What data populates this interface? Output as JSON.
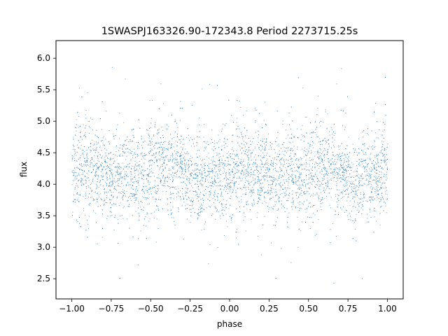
{
  "chart_data": {
    "type": "scatter",
    "title": "1SWASPJ163326.90-172343.8 Period 2273715.25s",
    "xlabel": "phase",
    "ylabel": "flux",
    "xlim": [
      -1.1,
      1.1
    ],
    "ylim": [
      2.18,
      6.28
    ],
    "x_ticks": [
      -1.0,
      -0.75,
      -0.5,
      -0.25,
      0.0,
      0.25,
      0.5,
      0.75,
      1.0
    ],
    "x_tick_labels": [
      "−1.00",
      "−0.75",
      "−0.50",
      "−0.25",
      "0.00",
      "0.25",
      "0.50",
      "0.75",
      "1.00"
    ],
    "y_ticks": [
      2.5,
      3.0,
      3.5,
      4.0,
      4.5,
      5.0,
      5.5,
      6.0
    ],
    "y_tick_labels": [
      "2.5",
      "3.0",
      "3.5",
      "4.0",
      "4.5",
      "5.0",
      "5.5",
      "6.0"
    ],
    "grid": false,
    "legend": "none",
    "point_color": "#1f77b4",
    "series": [
      {
        "x": [
          -1.0,
          -0.95,
          -0.9,
          -0.85,
          -0.8,
          -0.75,
          -0.7,
          -0.65,
          -0.6,
          -0.55,
          -0.5,
          -0.45,
          -0.4,
          -0.35,
          -0.3,
          -0.25,
          -0.2,
          -0.15,
          -0.1,
          -0.05,
          0.0,
          0.05,
          0.1,
          0.15,
          0.2,
          0.25,
          0.3,
          0.35,
          0.4,
          0.45,
          0.5,
          0.55,
          0.6,
          0.65,
          0.7,
          0.75,
          0.8,
          0.85,
          0.9,
          0.95,
          1.0
        ],
        "y": [
          4.2,
          4.25,
          4.2,
          4.15,
          4.2,
          4.1,
          4.15,
          4.2,
          4.15,
          4.1,
          4.3,
          4.25,
          4.3,
          4.25,
          4.2,
          4.1,
          4.05,
          4.1,
          4.1,
          4.15,
          4.2,
          4.25,
          4.2,
          4.15,
          4.2,
          4.1,
          4.15,
          4.2,
          4.15,
          4.1,
          4.3,
          4.25,
          4.3,
          4.25,
          4.2,
          4.1,
          4.05,
          4.1,
          4.1,
          4.15,
          4.2
        ],
        "spread": [
          0.35,
          0.4,
          0.35,
          0.35,
          0.35,
          0.3,
          0.35,
          0.35,
          0.35,
          0.35,
          0.4,
          0.4,
          0.35,
          0.35,
          0.3,
          0.3,
          0.3,
          0.3,
          0.3,
          0.35,
          0.35,
          0.4,
          0.35,
          0.35,
          0.35,
          0.3,
          0.35,
          0.35,
          0.35,
          0.35,
          0.4,
          0.4,
          0.35,
          0.35,
          0.3,
          0.3,
          0.3,
          0.3,
          0.3,
          0.35,
          0.35
        ]
      }
    ]
  }
}
